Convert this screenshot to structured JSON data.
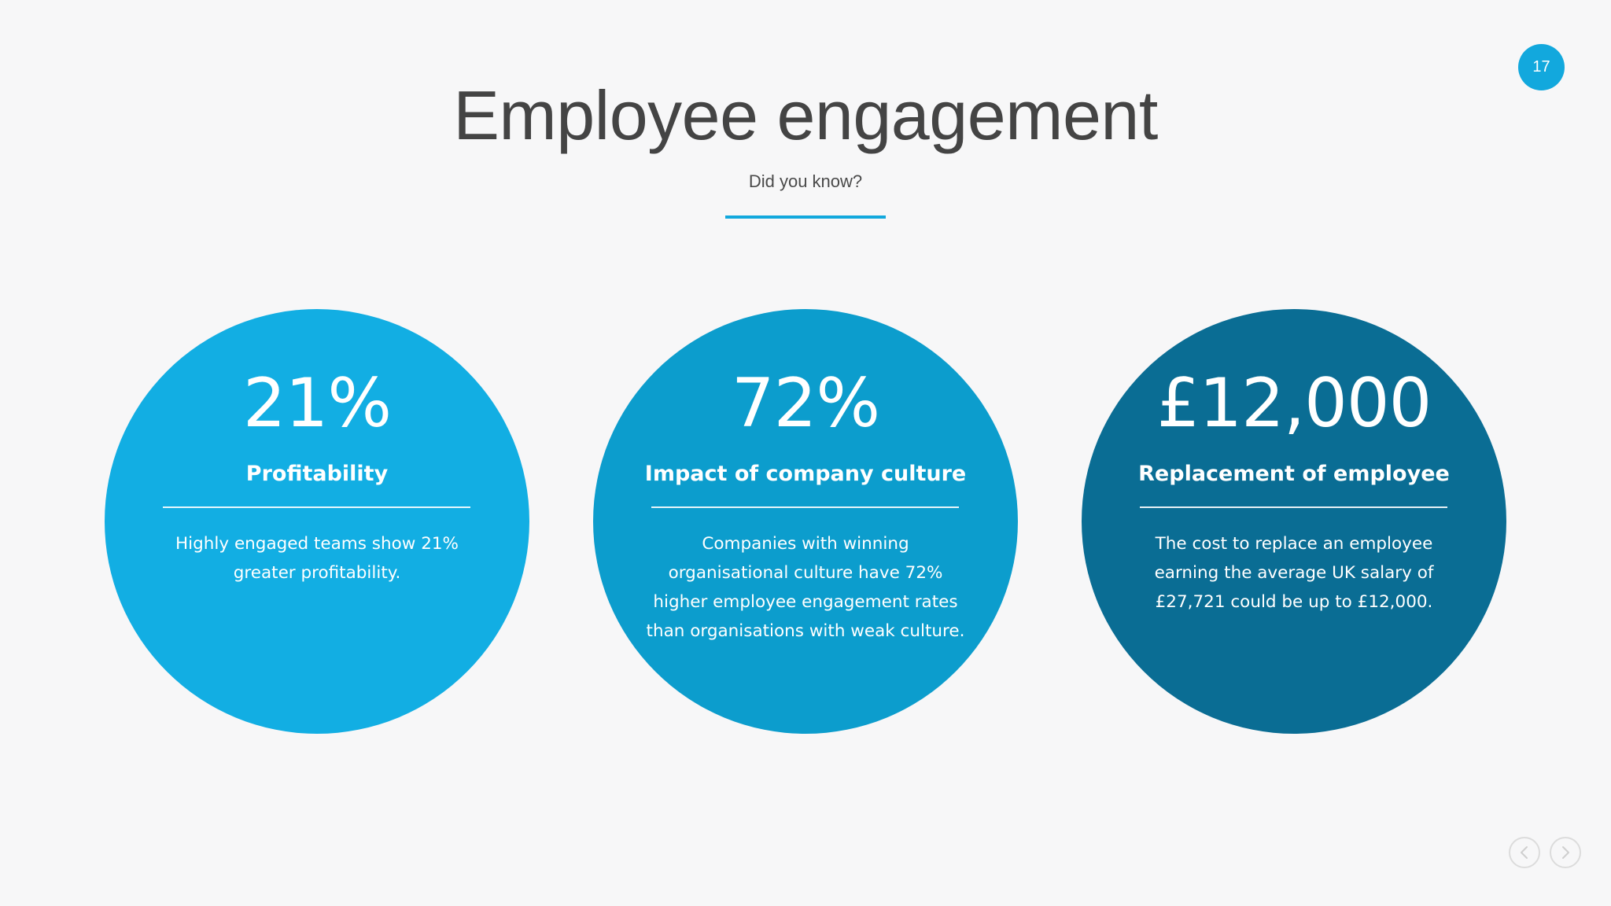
{
  "slide": {
    "page_number": "17",
    "title": "Employee engagement",
    "subtitle": "Did you know?"
  },
  "cards": [
    {
      "stat": "21%",
      "heading": "Profitability",
      "description": "Highly engaged teams show 21% greater profitability.",
      "color": "#12aee3"
    },
    {
      "stat": "72%",
      "heading": "Impact of company culture",
      "description": "Companies with winning organisational culture have 72% higher employee engagement rates than organisations with weak culture.",
      "color": "#0c9dcd"
    },
    {
      "stat": "£12,000",
      "heading": "Replacement of employee",
      "description": "The cost to replace an employee earning the average UK salary of £27,721 could be up to £12,000.",
      "color": "#0a6d94"
    }
  ],
  "navigation": {
    "prev_icon": "chevron-left-icon",
    "next_icon": "chevron-right-icon"
  },
  "colors": {
    "accent": "#12a8dd",
    "background": "#f7f7f8",
    "title_text": "#444444"
  }
}
